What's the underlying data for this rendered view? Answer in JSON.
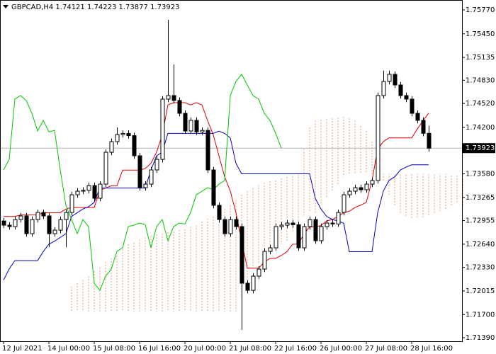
{
  "chart_data": {
    "type": "candlestick",
    "symbol": "GBPCAD,H4",
    "ylim": [
      1.71343,
      1.75902
    ],
    "yticks": [
      {
        "value": 1.7577,
        "label": "1.75770"
      },
      {
        "value": 1.7545,
        "label": "1.75450"
      },
      1.75135,
      {
        "value": 1.7483,
        "label": "1.74830"
      },
      {
        "value": 1.7452,
        "label": "1.74520"
      },
      {
        "value": 1.742,
        "label": "1.74200"
      },
      {
        "value": 1.7389,
        "label": "1.73890"
      },
      {
        "value": 1.7358,
        "label": "1.73580"
      },
      1.73265,
      1.72955,
      {
        "value": 1.7264,
        "label": "1.72640"
      },
      {
        "value": 1.7233,
        "label": "1.72330"
      },
      1.72015,
      {
        "value": 1.717,
        "label": "1.71700"
      },
      {
        "value": 1.7139,
        "label": "1.71390"
      }
    ],
    "categories": [
      "12 Jul 2021",
      null,
      null,
      null,
      null,
      null,
      null,
      null,
      "14 Jul 00:00",
      null,
      null,
      null,
      null,
      null,
      null,
      null,
      "15 Jul 08:00",
      null,
      null,
      null,
      null,
      null,
      null,
      null,
      "16 Jul 16:00",
      null,
      null,
      null,
      null,
      null,
      null,
      null,
      "20 Jul 00:00",
      null,
      null,
      null,
      null,
      null,
      null,
      null,
      "21 Jul 08:00",
      null,
      null,
      null,
      null,
      null,
      null,
      null,
      "22 Jul 16:00",
      null,
      null,
      null,
      null,
      null,
      null,
      null,
      "26 Jul 00:00",
      null,
      null,
      null,
      null,
      null,
      null,
      null,
      "27 Jul 08:00",
      null,
      null,
      null,
      null,
      null,
      null,
      null,
      "28 Jul 16:00",
      null,
      null,
      null,
      null,
      null,
      null,
      null,
      null,
      null
    ],
    "up_color": "#ffffff",
    "down_color": "#000000",
    "open": [
      1.7295,
      1.72894,
      1.72875,
      1.72969,
      1.73017,
      1.7278,
      1.72969,
      1.73064,
      1.73017,
      1.7278,
      1.72827,
      1.72969,
      1.73064,
      1.733,
      1.73348,
      1.7336,
      1.73423,
      1.73253,
      1.73442,
      1.73868,
      1.7401,
      1.74105,
      1.7412,
      1.7409,
      1.73821,
      1.73395,
      1.73442,
      1.73632,
      1.73773,
      1.74578,
      1.74625,
      1.7456,
      1.74388,
      1.74152,
      1.74294,
      1.7414,
      1.7416,
      1.73632,
      1.73159,
      1.72969,
      1.7278,
      1.72969,
      1.72875,
      1.72118,
      1.72023,
      1.72213,
      1.72307,
      1.72544,
      1.72591,
      1.72875,
      1.72894,
      1.72922,
      1.729,
      1.72591,
      1.72875,
      1.72969,
      1.72686,
      1.72875,
      1.72922,
      1.7291,
      1.73064,
      1.733,
      1.73348,
      1.73395,
      1.73367,
      1.73442,
      1.7349,
      1.74625,
      1.74814,
      1.74909,
      1.74767,
      1.74625,
      1.74578,
      1.74388,
      1.74294,
      1.74121,
      null,
      null,
      null,
      null,
      null,
      null
    ],
    "high": [
      1.7299,
      1.72934,
      1.73009,
      1.73057,
      1.73057,
      1.73009,
      1.73104,
      1.73104,
      1.73057,
      1.72867,
      1.73009,
      1.73104,
      1.7334,
      1.73388,
      1.734,
      1.73463,
      1.73463,
      1.73482,
      1.73908,
      1.7405,
      1.742,
      1.7416,
      1.7416,
      1.7413,
      1.73861,
      1.73482,
      1.73672,
      1.73813,
      1.74618,
      1.75637,
      1.7504,
      1.746,
      1.74428,
      1.74334,
      1.74334,
      1.742,
      1.742,
      1.73672,
      1.73199,
      1.73009,
      1.73009,
      1.73009,
      1.72915,
      1.72158,
      1.72253,
      1.72347,
      1.72584,
      1.72631,
      1.72915,
      1.72934,
      1.72962,
      1.72962,
      1.7294,
      1.72915,
      1.73009,
      1.73009,
      1.72915,
      1.72962,
      1.72962,
      1.73104,
      1.7334,
      1.73388,
      1.73435,
      1.73435,
      1.73482,
      1.7353,
      1.74665,
      1.7496,
      1.7496,
      1.74949,
      1.74807,
      1.74665,
      1.74618,
      1.74428,
      1.74334,
      1.74223,
      null,
      null,
      null,
      null,
      null,
      null
    ],
    "low": [
      1.72854,
      1.72835,
      1.72835,
      1.72929,
      1.7274,
      1.7274,
      1.72929,
      1.72977,
      1.726,
      1.7274,
      1.72787,
      1.726,
      1.73024,
      1.7326,
      1.73308,
      1.7332,
      1.73213,
      1.73213,
      1.73402,
      1.73828,
      1.7397,
      1.74065,
      1.7405,
      1.73781,
      1.73355,
      1.73355,
      1.73402,
      1.73592,
      1.73733,
      1.74538,
      1.7452,
      1.74348,
      1.74112,
      1.74112,
      1.741,
      1.741,
      1.73592,
      1.73119,
      1.72929,
      1.7274,
      1.7274,
      1.72835,
      1.71494,
      1.71983,
      1.71983,
      1.72173,
      1.72267,
      1.72504,
      1.72551,
      1.72835,
      1.72854,
      1.7286,
      1.72551,
      1.72551,
      1.72835,
      1.72646,
      1.72646,
      1.72835,
      1.7287,
      1.7287,
      1.73024,
      1.7326,
      1.73308,
      1.73327,
      1.73327,
      1.73402,
      1.7345,
      1.74585,
      1.74774,
      1.74727,
      1.74585,
      1.74538,
      1.74348,
      1.74254,
      1.74081,
      1.73877,
      null,
      null,
      null,
      null,
      null,
      null
    ],
    "close": [
      1.72894,
      1.72875,
      1.72969,
      1.73017,
      1.7278,
      1.72969,
      1.73064,
      1.73017,
      1.7278,
      1.72827,
      1.72969,
      1.73064,
      1.733,
      1.73348,
      1.7336,
      1.73423,
      1.73253,
      1.73442,
      1.73868,
      1.7401,
      1.74105,
      1.7412,
      1.7409,
      1.73821,
      1.73395,
      1.73442,
      1.73632,
      1.73773,
      1.74578,
      1.74625,
      1.7456,
      1.74388,
      1.74152,
      1.74294,
      1.7414,
      1.7416,
      1.73632,
      1.73159,
      1.72969,
      1.7278,
      1.72969,
      1.72875,
      1.72118,
      1.72023,
      1.72213,
      1.72307,
      1.72544,
      1.72591,
      1.72875,
      1.72894,
      1.72922,
      1.729,
      1.72591,
      1.72875,
      1.72969,
      1.72686,
      1.72875,
      1.72922,
      1.7291,
      1.73064,
      1.733,
      1.73348,
      1.73395,
      1.73367,
      1.73442,
      1.7349,
      1.74625,
      1.74814,
      1.74909,
      1.74767,
      1.74625,
      1.74578,
      1.74388,
      1.74294,
      1.74121,
      1.73923,
      null,
      null,
      null,
      null,
      null,
      null
    ],
    "cloud": {
      "color": "#e8a070",
      "a": [
        null,
        null,
        null,
        null,
        null,
        null,
        null,
        null,
        null,
        null,
        null,
        null,
        1.7207,
        1.7212,
        1.7216,
        1.7221,
        1.7228,
        1.7233,
        1.724,
        1.7245,
        1.7249,
        1.7257,
        1.7264,
        1.7266,
        1.727,
        1.7273,
        1.7275,
        1.7277,
        1.7278,
        1.728,
        1.7281,
        1.7283,
        1.7284,
        1.7287,
        1.7289,
        1.7294,
        1.7298,
        1.7301,
        1.7306,
        1.7311,
        1.7316,
        1.7323,
        1.733,
        1.7335,
        1.7339,
        1.7343,
        1.7346,
        1.7348,
        1.7349,
        1.7352,
        1.7354,
        1.7355,
        1.7358,
        1.7391,
        1.742,
        1.7429,
        1.743,
        1.7431,
        1.7432,
        1.7433,
        1.7434,
        1.7432,
        1.7429,
        1.7422,
        1.7415,
        1.7401,
        1.7372,
        1.7349,
        1.733,
        1.7316,
        1.7306,
        1.7302,
        1.7299,
        1.73,
        1.73,
        1.7303,
        1.7306,
        1.7308,
        1.7311,
        1.7316,
        1.732,
        1.7316
      ],
      "b": [
        null,
        null,
        null,
        null,
        null,
        null,
        null,
        null,
        null,
        null,
        null,
        null,
        1.7174,
        1.7174,
        1.7174,
        1.7174,
        1.7174,
        1.7174,
        1.7174,
        1.7174,
        1.7174,
        1.7174,
        1.7174,
        1.7174,
        1.7174,
        1.7174,
        1.7174,
        1.7174,
        1.7174,
        1.7174,
        1.7174,
        1.7174,
        1.7174,
        1.7174,
        1.7174,
        1.7174,
        1.7174,
        1.7174,
        1.7174,
        1.7174,
        1.7174,
        1.7174,
        1.7193,
        1.7212,
        1.7231,
        1.7238,
        1.7245,
        1.7252,
        1.7259,
        1.7264,
        1.7268,
        1.728,
        1.7292,
        1.7301,
        1.7306,
        1.7306,
        1.7316,
        1.7325,
        1.7335,
        1.7344,
        1.7354,
        1.7358,
        1.7358,
        1.7358,
        1.7358,
        1.7358,
        1.7358,
        1.7358,
        1.7358,
        1.7358,
        1.7358,
        1.7358,
        1.7358,
        1.7358,
        1.7358,
        1.7358,
        1.7358,
        1.7358,
        1.7358,
        1.7358,
        1.7358,
        1.7358
      ]
    },
    "lines": [
      {
        "color": "#e00000",
        "values": [
          1.7301,
          1.7301,
          1.7301,
          1.7303,
          1.7303,
          1.7303,
          1.7303,
          1.7306,
          1.7306,
          1.7306,
          1.7306,
          1.7311,
          1.7313,
          1.7313,
          1.7313,
          1.7313,
          1.7313,
          1.7336,
          1.7339,
          1.7342,
          1.7342,
          1.7363,
          1.7363,
          1.7363,
          1.7363,
          1.7365,
          1.7372,
          1.7387,
          1.741,
          1.745,
          1.7453,
          1.7453,
          1.7453,
          1.745,
          1.7453,
          1.745,
          1.7429,
          1.741,
          1.7382,
          1.7354,
          1.7335,
          1.7306,
          1.7268,
          1.7232,
          1.7232,
          1.7232,
          1.724,
          1.7245,
          1.7245,
          1.7249,
          1.7254,
          1.7264,
          1.7264,
          1.7278,
          1.7287,
          1.7287,
          1.7289,
          1.7295,
          1.7297,
          1.7301,
          1.7306,
          1.7308,
          1.7313,
          1.7316,
          1.732,
          1.7349,
          1.7391,
          1.7401,
          1.7406,
          1.7406,
          1.7406,
          1.7406,
          1.7406,
          1.7418,
          1.7429,
          1.7439,
          null,
          null,
          null,
          null,
          null,
          null
        ]
      },
      {
        "color": "#0000c8",
        "values": [
          1.7216,
          1.7231,
          1.7242,
          1.7242,
          1.7242,
          1.7242,
          1.7242,
          1.7254,
          1.7264,
          1.7268,
          1.7273,
          1.7278,
          1.7301,
          1.7306,
          1.7311,
          1.7314,
          1.732,
          1.7339,
          1.7339,
          1.7339,
          1.7339,
          1.7339,
          1.7339,
          1.7339,
          1.7339,
          1.7339,
          1.7363,
          1.7382,
          1.7387,
          1.7412,
          1.7412,
          1.7412,
          1.7412,
          1.7412,
          1.7412,
          1.7412,
          1.7412,
          1.7412,
          1.7415,
          1.7412,
          1.7406,
          1.7372,
          1.7358,
          1.7358,
          1.7358,
          1.7358,
          1.7358,
          1.7358,
          1.7358,
          1.7358,
          1.7358,
          1.7358,
          1.7358,
          1.7358,
          1.7358,
          1.7325,
          1.7311,
          1.7301,
          1.7297,
          1.7295,
          1.7292,
          1.7254,
          1.7254,
          1.7254,
          1.7254,
          1.7254,
          1.7306,
          1.7335,
          1.7349,
          1.7354,
          1.7363,
          1.7367,
          1.737,
          1.737,
          1.737,
          1.737,
          null,
          null,
          null,
          null,
          null,
          null
        ]
      },
      {
        "color": "#00c800",
        "values": [
          1.73632,
          1.73773,
          1.74578,
          1.74625,
          1.7456,
          1.74388,
          1.74152,
          1.74294,
          1.7414,
          1.7416,
          1.73632,
          1.73159,
          1.72969,
          1.7278,
          1.72969,
          1.72875,
          1.72118,
          1.72023,
          1.72213,
          1.72307,
          1.72544,
          1.72591,
          1.72875,
          1.72894,
          1.72922,
          1.729,
          1.72591,
          1.72875,
          1.72969,
          1.72686,
          1.72875,
          1.72922,
          1.7291,
          1.73064,
          1.733,
          1.73348,
          1.73395,
          1.73367,
          1.73442,
          1.7349,
          1.74625,
          1.74814,
          1.74909,
          1.74767,
          1.74625,
          1.74578,
          1.74388,
          1.74294,
          1.74121,
          1.73923,
          null,
          null,
          null,
          null,
          null,
          null,
          null,
          null,
          null,
          null,
          null,
          null,
          null,
          null,
          null,
          null,
          null,
          null,
          null,
          null,
          null,
          null,
          null,
          null,
          null,
          null,
          null,
          null,
          null,
          null,
          null,
          null
        ]
      }
    ]
  }
}
